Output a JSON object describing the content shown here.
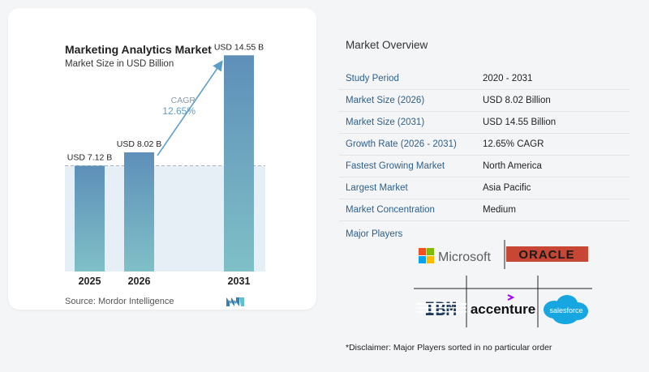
{
  "chart_data": {
    "type": "bar",
    "title": "Marketing Analytics Market",
    "subtitle": "Market Size in USD Billion",
    "categories": [
      "2025",
      "2026",
      "2031"
    ],
    "values": [
      7.12,
      8.02,
      14.55
    ],
    "data_labels": [
      "USD 7.12 B",
      "USD 8.02 B",
      "USD 14.55 B"
    ],
    "cagr_label": "CAGR",
    "cagr_value": "12.65%",
    "ylim": [
      0,
      15
    ],
    "colors": {
      "bar_top": "#5e8fb9",
      "bar_bottom": "#7fc0c7",
      "cagr": "#5d9ec6",
      "reference_fill": "#e6eef6"
    }
  },
  "source_text": "Source:  Mordor Intelligence",
  "overview": {
    "title": "Market Overview",
    "rows": [
      {
        "label": "Study Period",
        "value": "2020 - 2031"
      },
      {
        "label": "Market Size (2026)",
        "value": "USD 8.02 Billion"
      },
      {
        "label": "Market Size (2031)",
        "value": "USD 14.55 Billion"
      },
      {
        "label": "Growth Rate (2026 - 2031)",
        "value": "12.65% CAGR"
      },
      {
        "label": "Fastest Growing Market",
        "value": "North America"
      },
      {
        "label": "Largest Market",
        "value": "Asia Pacific"
      },
      {
        "label": "Market Concentration",
        "value": "Medium"
      }
    ],
    "players_label": "Major Players",
    "players": [
      "Microsoft",
      "ORACLE",
      "IBM",
      "accenture",
      "salesforce"
    ],
    "disclaimer": "*Disclaimer: Major Players sorted in no particular order"
  }
}
